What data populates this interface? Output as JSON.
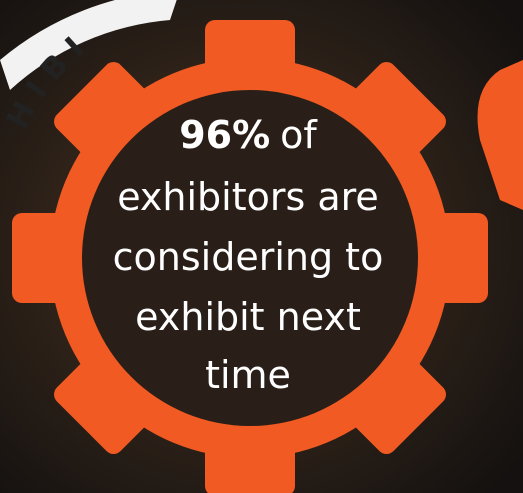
{
  "ring_text": "H I B I",
  "headline": {
    "highlight": "96%",
    "lines": [
      "of",
      "exhibitors are",
      "considering to",
      "exhibit next",
      "time"
    ]
  }
}
